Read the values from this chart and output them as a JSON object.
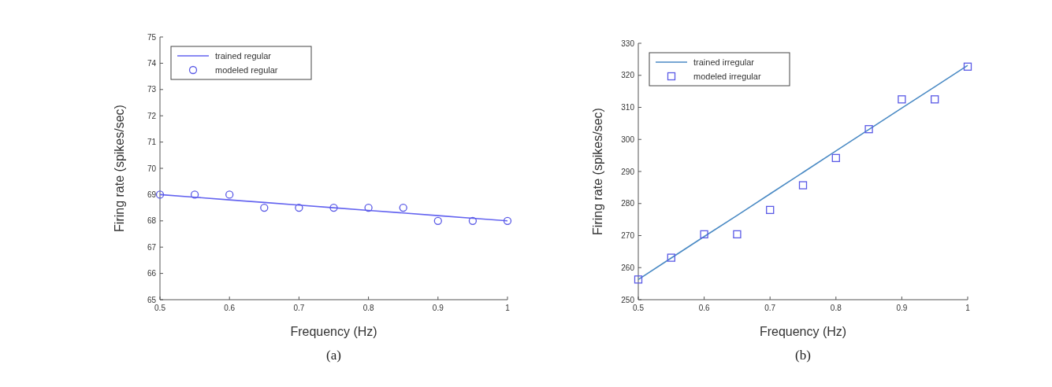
{
  "chart_data": [
    {
      "type": "scatter",
      "xlabel": "Frequency (Hz)",
      "ylabel": "Firing rate (spikes/sec)",
      "annotations": [
        "(a)"
      ],
      "xlim": [
        0.5,
        1
      ],
      "xticks": [
        0.5,
        0.6,
        0.7,
        0.8,
        0.9,
        1
      ],
      "ylim": [
        65,
        75
      ],
      "yticks": [
        65,
        66,
        67,
        68,
        69,
        70,
        71,
        72,
        73,
        74,
        75
      ],
      "legend": "top left",
      "x": [
        0.5,
        0.55,
        0.6,
        0.65,
        0.7,
        0.75,
        0.8,
        0.85,
        0.9,
        0.95,
        1
      ],
      "series": [
        {
          "name": "trained regular",
          "type": "line",
          "color": "#6464f0",
          "values": [
            69,
            68.9,
            68.8,
            68.7,
            68.6,
            68.5,
            68.4,
            68.3,
            68.2,
            68.1,
            68
          ]
        },
        {
          "name": "modeled regular",
          "marker": "circle",
          "color": "#5a5ae6",
          "values": [
            69,
            69,
            69,
            68.5,
            68.5,
            68.5,
            68.5,
            68.5,
            68,
            68,
            68
          ]
        }
      ]
    },
    {
      "type": "scatter",
      "xlabel": "Frequency (Hz)",
      "ylabel": "Firing rate (spikes/sec)",
      "annotations": [
        "(b)"
      ],
      "xlim": [
        0.5,
        1
      ],
      "xticks": [
        0.5,
        0.6,
        0.7,
        0.8,
        0.9,
        1
      ],
      "ylim": [
        250,
        330
      ],
      "yticks": [
        250,
        260,
        270,
        280,
        290,
        300,
        310,
        320,
        330
      ],
      "legend": "top left",
      "x": [
        0.5,
        0.55,
        0.6,
        0.65,
        0.7,
        0.75,
        0.8,
        0.85,
        0.9,
        0.95,
        1
      ],
      "series": [
        {
          "name": "trained irregular",
          "type": "line",
          "color": "#4a8ac4",
          "values": [
            256.3,
            263,
            269.7,
            276.3,
            283,
            289.7,
            296.4,
            303.1,
            309.8,
            316.4,
            323.1
          ]
        },
        {
          "name": "modeled irregular",
          "marker": "square",
          "color": "#5a5ae6",
          "values": [
            256.3,
            263.1,
            270.4,
            270.4,
            278,
            285.7,
            294.2,
            303.2,
            312.5,
            312.5,
            322.7
          ]
        }
      ]
    }
  ]
}
